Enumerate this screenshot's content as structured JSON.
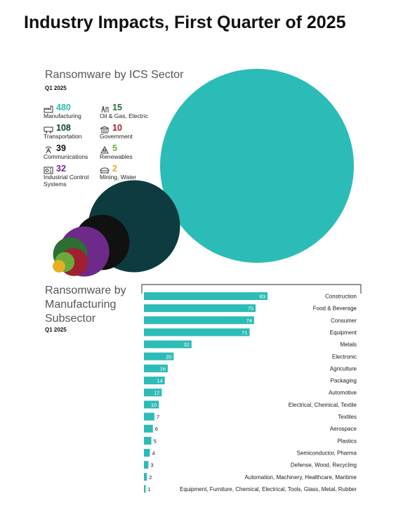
{
  "page": {
    "title": "Industry Impacts, First Quarter of 2025"
  },
  "sector": {
    "title": "Ransomware by ICS Sector",
    "subtitle": "Q1 2025"
  },
  "subsector": {
    "title": "Ransomware by Manufacturing Subsector",
    "subtitle": "Q1 2025"
  },
  "chart_data": [
    {
      "type": "bubble",
      "title": "Ransomware by ICS Sector",
      "subtitle": "Q1 2025",
      "categories": [
        "Manufacturing",
        "Transportation",
        "Communications",
        "Industrial Control Systems",
        "Oil & Gas, Electric",
        "Government",
        "Renewables",
        "Mining, Water"
      ],
      "values": [
        480,
        108,
        39,
        32,
        15,
        10,
        5,
        2
      ],
      "colors": [
        "#2cbcb7",
        "#0d3b40",
        "#111111",
        "#6d2a8a",
        "#2d6e33",
        "#a02030",
        "#6aaa3a",
        "#e5b020"
      ],
      "icons": [
        "factory-icon",
        "train-icon",
        "radio-tower-icon",
        "control-panel-icon",
        "oil-rig-icon",
        "government-building-icon",
        "renewables-icon",
        "mining-icon"
      ]
    },
    {
      "type": "bar",
      "orientation": "horizontal",
      "title": "Ransomware by Manufacturing Subsector",
      "subtitle": "Q1 2025",
      "categories": [
        "Construction",
        "Food & Beverage",
        "Consumer",
        "Equipment",
        "Metals",
        "Electronic",
        "Agriculture",
        "Packaging",
        "Automotive",
        "Electrical, Chemical, Textile",
        "Textiles",
        "Aerospace",
        "Plastics",
        "Semiconductor, Pharma",
        "Defense, Wood, Recycling",
        "Automation, Machinery, Healthcare, Maritime",
        "Equipment, Furniture, Chemical, Electrical, Tools, Glass, Metal, Rubber"
      ],
      "values": [
        83,
        75,
        74,
        71,
        32,
        20,
        16,
        14,
        12,
        10,
        7,
        6,
        5,
        4,
        3,
        2,
        1
      ],
      "color": "#2cbcb7"
    }
  ]
}
